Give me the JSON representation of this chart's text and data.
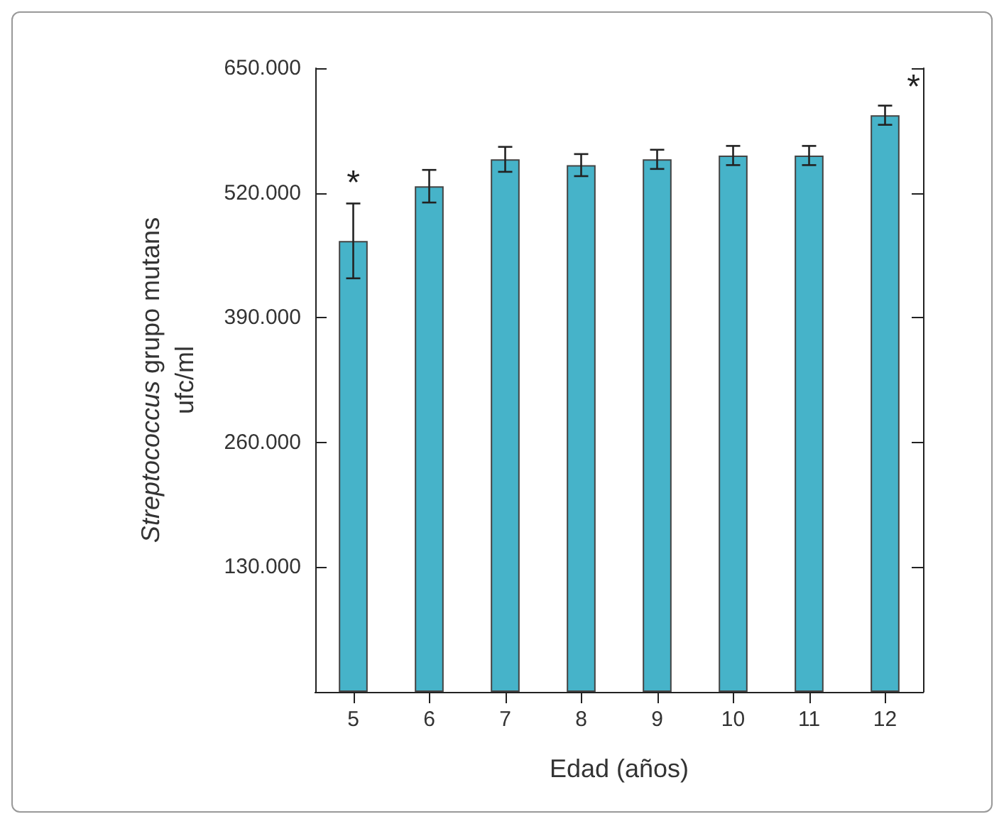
{
  "chart_data": {
    "type": "bar",
    "xlabel": "Edad (años)",
    "ylabel": "Streptococcus grupo mutans\nufc/ml",
    "categories": [
      "5",
      "6",
      "7",
      "8",
      "9",
      "10",
      "11",
      "12"
    ],
    "values": [
      470000,
      527000,
      555000,
      549000,
      555000,
      559000,
      559000,
      601000
    ],
    "errors": [
      39000,
      17000,
      13000,
      11500,
      10000,
      10000,
      10000,
      10000
    ],
    "color": "#46b3c9",
    "ylim": [
      0,
      650000
    ],
    "yticks": [
      {
        "value": 130000,
        "label": "130.000"
      },
      {
        "value": 260000,
        "label": "260.000"
      },
      {
        "value": 390000,
        "label": "390.000"
      },
      {
        "value": 520000,
        "label": "520.000"
      },
      {
        "value": 650000,
        "label": "650.000"
      }
    ],
    "annotations": [
      {
        "text": "*",
        "x": "5",
        "y": 512000
      },
      {
        "text": "*",
        "x": "12",
        "y": 612000
      }
    ],
    "grid": false
  }
}
